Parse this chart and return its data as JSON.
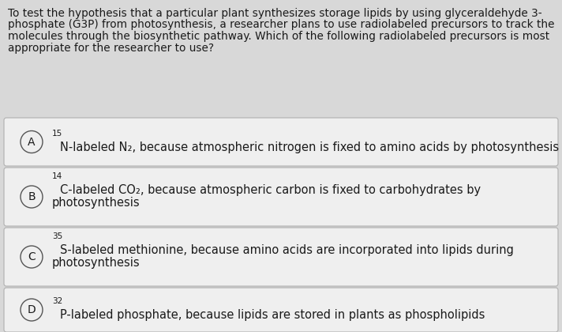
{
  "background_color": "#d8d8d8",
  "option_bg": "#efefef",
  "question_text_line1": "To test the hypothesis that a particular plant synthesizes storage lipids by using glyceraldehyde 3-",
  "question_text_line2": "phosphate (G3P) from photosynthesis, a researcher plans to use radiolabeled precursors to track the",
  "question_text_line3": "molecules through the biosynthetic pathway. Which of the following radiolabeled precursors is most",
  "question_text_line4": "appropriate for the researcher to use?",
  "options": [
    {
      "letter": "A",
      "superscript": "15",
      "text_line1": "N-labeled N₂, because atmospheric nitrogen is fixed to amino acids by photosynthesis",
      "text_line2": ""
    },
    {
      "letter": "B",
      "superscript": "14",
      "text_line1": "C-labeled CO₂, because atmospheric carbon is fixed to carbohydrates by",
      "text_line2": "photosynthesis"
    },
    {
      "letter": "C",
      "superscript": "35",
      "text_line1": "S-labeled methionine, because amino acids are incorporated into lipids during",
      "text_line2": "photosynthesis"
    },
    {
      "letter": "D",
      "superscript": "32",
      "text_line1": "P-labeled phosphate, because lipids are stored in plants as phospholipids",
      "text_line2": ""
    }
  ],
  "question_fontsize": 9.8,
  "option_fontsize": 10.5,
  "superscript_fontsize": 7.5,
  "circle_fontsize": 10,
  "text_color": "#1a1a1a",
  "border_color": "#b0b0b0",
  "circle_border_color": "#555555",
  "gap_color": "#d8d8d8"
}
